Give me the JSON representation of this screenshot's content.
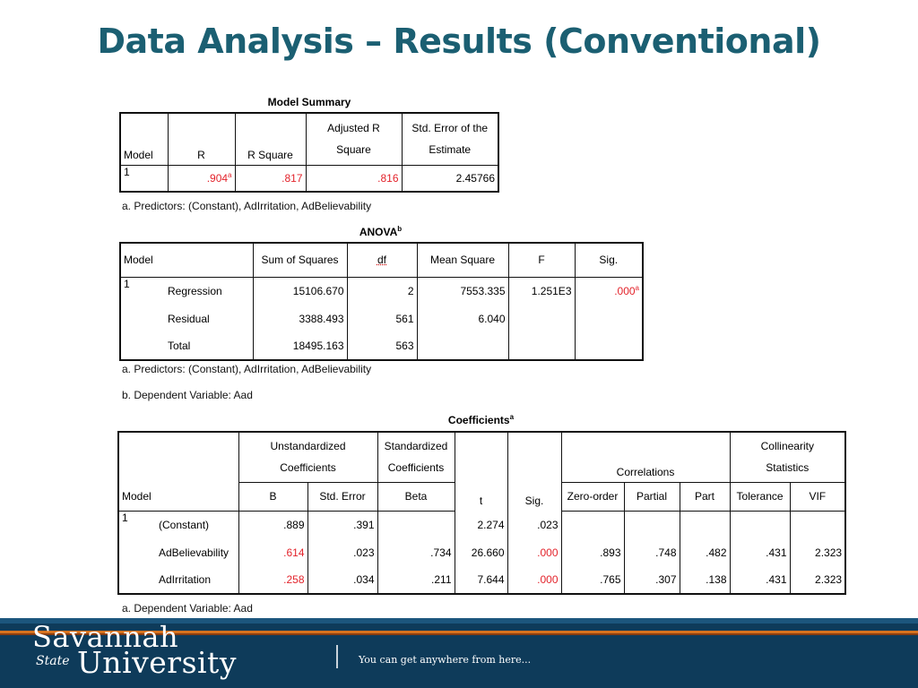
{
  "title": "Data Analysis – Results (Conventional)",
  "model_summary": {
    "caption": "Model Summary",
    "headers": {
      "model": "Model",
      "r": "R",
      "r_square": "R Square",
      "adj_r_1": "Adjusted R",
      "adj_r_2": "Square",
      "se_1": "Std. Error of the",
      "se_2": "Estimate"
    },
    "row": {
      "model": "1",
      "r": ".904",
      "r_sup": "a",
      "r_square": ".817",
      "adj_r_square": ".816",
      "se": "2.45766"
    },
    "note_a": "a. Predictors: (Constant), AdIrritation, AdBelievability"
  },
  "anova": {
    "caption": "ANOVA",
    "caption_sup": "b",
    "headers": {
      "model": "Model",
      "ss": "Sum of Squares",
      "df": "df",
      "ms": "Mean Square",
      "f": "F",
      "sig": "Sig."
    },
    "model": "1",
    "rows": [
      {
        "label": "Regression",
        "ss": "15106.670",
        "df": "2",
        "ms": "7553.335",
        "f": "1.251E3",
        "sig": ".000",
        "sig_sup": "a"
      },
      {
        "label": "Residual",
        "ss": "3388.493",
        "df": "561",
        "ms": "6.040"
      },
      {
        "label": "Total",
        "ss": "18495.163",
        "df": "563"
      }
    ],
    "note_a": "a. Predictors: (Constant), AdIrritation, AdBelievability",
    "note_b": "b. Dependent Variable: Aad"
  },
  "coefficients": {
    "caption": "Coefficients",
    "caption_sup": "a",
    "headers": {
      "unstd_1": "Unstandardized",
      "unstd_2": "Coefficients",
      "std_1": "Standardized",
      "std_2": "Coefficients",
      "correlations": "Correlations",
      "coll_1": "Collinearity",
      "coll_2": "Statistics",
      "model": "Model",
      "b": "B",
      "std_error": "Std. Error",
      "beta": "Beta",
      "t": "t",
      "sig": "Sig.",
      "zero_order": "Zero-order",
      "partial": "Partial",
      "part": "Part",
      "tolerance": "Tolerance",
      "vif": "VIF"
    },
    "model": "1",
    "rows": [
      {
        "label": "(Constant)",
        "b": ".889",
        "se": ".391",
        "beta": "",
        "t": "2.274",
        "sig": ".023",
        "zero": "",
        "partial": "",
        "part": "",
        "tol": "",
        "vif": ""
      },
      {
        "label": "AdBelievability",
        "b": ".614",
        "se": ".023",
        "beta": ".734",
        "t": "26.660",
        "sig": ".000",
        "zero": ".893",
        "partial": ".748",
        "part": ".482",
        "tol": ".431",
        "vif": "2.323"
      },
      {
        "label": "AdIrritation",
        "b": ".258",
        "se": ".034",
        "beta": ".211",
        "t": "7.644",
        "sig": ".000",
        "zero": ".765",
        "partial": ".307",
        "part": ".138",
        "tol": ".431",
        "vif": "2.323"
      }
    ],
    "note_a": "a. Dependent Variable: Aad"
  },
  "footer": {
    "brand_line1": "Savannah",
    "brand_state": "State",
    "brand_line2": "University",
    "tagline": "You can get anywhere from here..."
  },
  "colors": {
    "title": "#1b5f72",
    "highlight": "#e3232b",
    "footer_bg": "#0e3b5a",
    "footer_stripe": "#d7731f"
  }
}
